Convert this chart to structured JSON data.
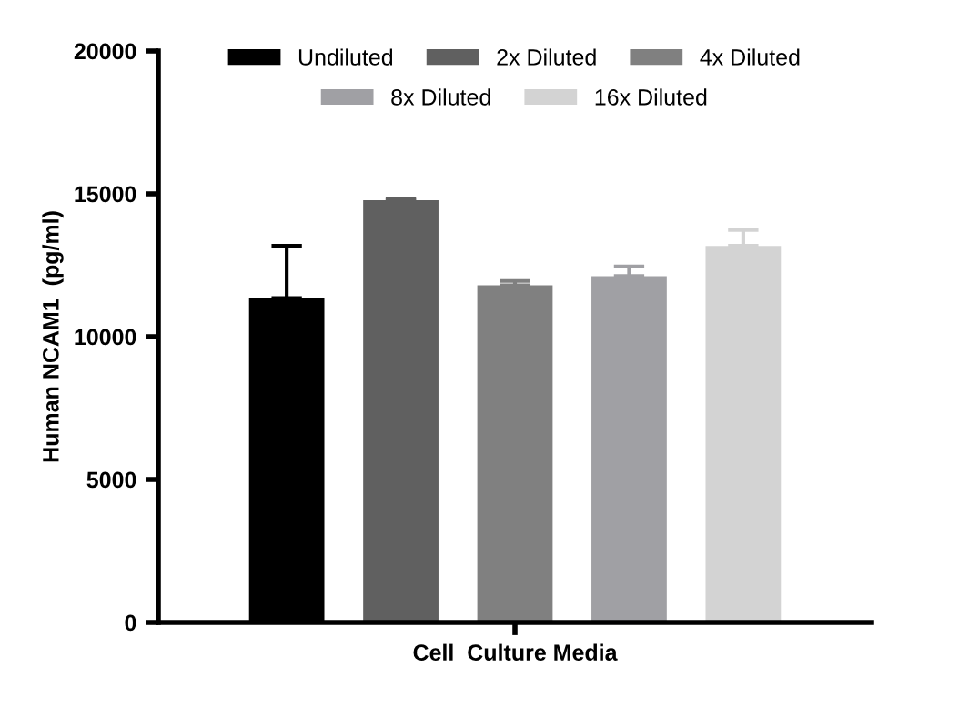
{
  "chart_data": {
    "type": "bar",
    "ylabel": "Human NCAM1  (pg/ml)",
    "categories": [
      "Cell  Culture Media"
    ],
    "series": [
      {
        "name": "Undiluted",
        "color": "#000000",
        "values": [
          11350
        ],
        "errors": [
          [
            11350,
            13180
          ]
        ]
      },
      {
        "name": "2x Diluted",
        "color": "#606060",
        "values": [
          14780
        ],
        "errors": [
          [
            14780,
            14840
          ]
        ]
      },
      {
        "name": "4x Diluted",
        "color": "#808080",
        "values": [
          11800
        ],
        "errors": [
          [
            11800,
            11950
          ]
        ]
      },
      {
        "name": "8x Diluted",
        "color": "#a0a0a4",
        "values": [
          12120
        ],
        "errors": [
          [
            12120,
            12460
          ]
        ]
      },
      {
        "name": "16x Diluted",
        "color": "#d3d3d3",
        "values": [
          13180
        ],
        "errors": [
          [
            13180,
            13740
          ]
        ]
      }
    ],
    "ylim": [
      0,
      20000
    ],
    "yticks": [
      0,
      5000,
      10000,
      15000,
      20000
    ],
    "grid": false,
    "legend": "top"
  }
}
